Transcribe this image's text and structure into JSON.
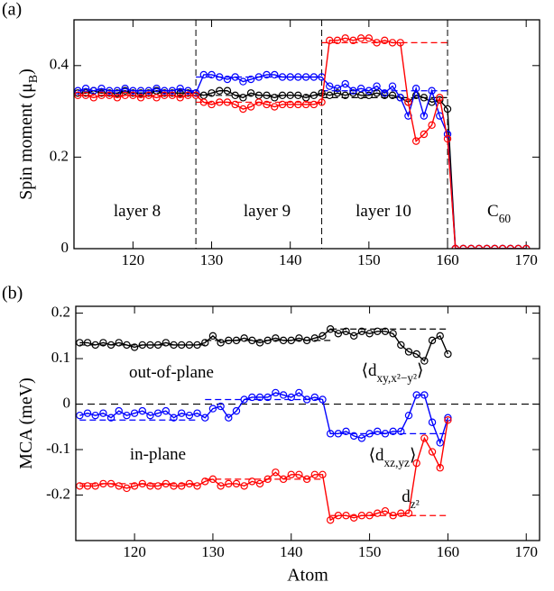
{
  "chart_data": [
    {
      "type": "line",
      "panel_label": "(a)",
      "y_label": [
        "Spin moment (μ",
        "B",
        ")"
      ],
      "xlim": [
        112.5,
        171.7
      ],
      "ylim": [
        0,
        0.5
      ],
      "xticks": [
        120,
        130,
        140,
        150,
        160,
        170
      ],
      "yticks": [
        0,
        0.2,
        0.4
      ],
      "dividers": [
        128,
        144,
        160
      ],
      "annotations": [
        [
          "layer 8"
        ],
        [
          "layer 9"
        ],
        [
          "layer 10"
        ],
        [
          "C",
          "60"
        ]
      ],
      "x": [
        113,
        114,
        115,
        116,
        117,
        118,
        119,
        120,
        121,
        122,
        123,
        124,
        125,
        126,
        127,
        128,
        129,
        130,
        131,
        132,
        133,
        134,
        135,
        136,
        137,
        138,
        139,
        140,
        141,
        142,
        143,
        144,
        145,
        146,
        147,
        148,
        149,
        150,
        151,
        152,
        153,
        154,
        155,
        156,
        157,
        158,
        159,
        160,
        161,
        162,
        163,
        164,
        165,
        166,
        167,
        168,
        169,
        170
      ],
      "series": [
        {
          "color": "#000000",
          "values": [
            0.34,
            0.34,
            0.345,
            0.34,
            0.34,
            0.34,
            0.345,
            0.34,
            0.34,
            0.34,
            0.345,
            0.34,
            0.34,
            0.34,
            0.34,
            0.34,
            0.335,
            0.34,
            0.345,
            0.345,
            0.335,
            0.33,
            0.34,
            0.335,
            0.335,
            0.33,
            0.335,
            0.335,
            0.335,
            0.33,
            0.335,
            0.34,
            0.335,
            0.34,
            0.335,
            0.34,
            0.335,
            0.335,
            0.34,
            0.335,
            0.335,
            0.33,
            0.32,
            0.335,
            0.33,
            0.32,
            0.325,
            0.305,
            0,
            0,
            0,
            0,
            0,
            0,
            0,
            0,
            0,
            0
          ]
        },
        {
          "color": "#0000ff",
          "values": [
            0.345,
            0.35,
            0.345,
            0.35,
            0.345,
            0.345,
            0.35,
            0.345,
            0.345,
            0.345,
            0.35,
            0.345,
            0.345,
            0.35,
            0.345,
            0.34,
            0.38,
            0.38,
            0.375,
            0.37,
            0.375,
            0.365,
            0.37,
            0.375,
            0.38,
            0.38,
            0.375,
            0.375,
            0.375,
            0.375,
            0.375,
            0.375,
            0.355,
            0.35,
            0.36,
            0.345,
            0.35,
            0.345,
            0.355,
            0.34,
            0.355,
            0.33,
            0.29,
            0.35,
            0.29,
            0.345,
            0.29,
            0.25,
            0,
            0,
            0,
            0,
            0,
            0,
            0,
            0,
            0,
            0
          ]
        },
        {
          "color": "#ff0000",
          "values": [
            0.335,
            0.335,
            0.33,
            0.335,
            0.335,
            0.33,
            0.335,
            0.335,
            0.33,
            0.335,
            0.33,
            0.335,
            0.335,
            0.33,
            0.335,
            0.335,
            0.32,
            0.315,
            0.32,
            0.32,
            0.315,
            0.305,
            0.31,
            0.32,
            0.315,
            0.31,
            0.315,
            0.315,
            0.315,
            0.315,
            0.315,
            0.32,
            0.455,
            0.455,
            0.46,
            0.455,
            0.46,
            0.46,
            0.45,
            0.455,
            0.45,
            0.45,
            0.32,
            0.235,
            0.25,
            0.27,
            0.33,
            0.24,
            0,
            0,
            0,
            0,
            0,
            0,
            0,
            0,
            0,
            0
          ]
        }
      ],
      "mean_segments": [
        {
          "color": "#000000",
          "xrange": [
            113,
            128
          ],
          "value": 0.34
        },
        {
          "color": "#000000",
          "xrange": [
            128,
            144
          ],
          "value": 0.335
        },
        {
          "color": "#000000",
          "xrange": [
            144,
            160
          ],
          "value": 0.33
        },
        {
          "color": "#0000ff",
          "xrange": [
            113,
            128
          ],
          "value": 0.345
        },
        {
          "color": "#0000ff",
          "xrange": [
            128,
            144
          ],
          "value": 0.375
        },
        {
          "color": "#0000ff",
          "xrange": [
            144,
            160
          ],
          "value": 0.345
        },
        {
          "color": "#ff0000",
          "xrange": [
            113,
            128
          ],
          "value": 0.335
        },
        {
          "color": "#ff0000",
          "xrange": [
            128,
            144
          ],
          "value": 0.32
        },
        {
          "color": "#ff0000",
          "xrange": [
            144,
            160
          ],
          "value": 0.45
        }
      ]
    },
    {
      "type": "line",
      "panel_label": "(b)",
      "y_label": [
        "MCA (meV)"
      ],
      "x_label": "Atom",
      "xlim": [
        112.5,
        171.7
      ],
      "ylim": [
        -0.3,
        0.215
      ],
      "xticks": [
        120,
        130,
        140,
        150,
        160,
        170
      ],
      "yticks": [
        -0.2,
        -0.1,
        0,
        0.1,
        0.2
      ],
      "hline": 0,
      "annotations": [
        [
          "out-of-plane"
        ],
        [
          "in-plane"
        ],
        [
          "⟨d",
          "xy,x²−y²",
          "⟩"
        ],
        [
          "⟨d",
          "xz,yz",
          "⟩"
        ],
        [
          "d",
          "z²"
        ]
      ],
      "x": [
        113,
        114,
        115,
        116,
        117,
        118,
        119,
        120,
        121,
        122,
        123,
        124,
        125,
        126,
        127,
        128,
        129,
        130,
        131,
        132,
        133,
        134,
        135,
        136,
        137,
        138,
        139,
        140,
        141,
        142,
        143,
        144,
        145,
        146,
        147,
        148,
        149,
        150,
        151,
        152,
        153,
        154,
        155,
        156,
        157,
        158,
        159,
        160
      ],
      "series": [
        {
          "color": "#000000",
          "values": [
            0.135,
            0.135,
            0.13,
            0.135,
            0.13,
            0.135,
            0.13,
            0.125,
            0.13,
            0.13,
            0.13,
            0.135,
            0.13,
            0.13,
            0.13,
            0.13,
            0.135,
            0.15,
            0.135,
            0.14,
            0.14,
            0.145,
            0.14,
            0.135,
            0.14,
            0.145,
            0.14,
            0.14,
            0.145,
            0.14,
            0.145,
            0.15,
            0.165,
            0.155,
            0.16,
            0.15,
            0.16,
            0.155,
            0.16,
            0.16,
            0.155,
            0.13,
            0.115,
            0.11,
            0.095,
            0.14,
            0.15,
            0.11
          ]
        },
        {
          "color": "#0000ff",
          "values": [
            -0.025,
            -0.02,
            -0.025,
            -0.02,
            -0.03,
            -0.015,
            -0.025,
            -0.02,
            -0.015,
            -0.025,
            -0.02,
            -0.015,
            -0.03,
            -0.02,
            -0.025,
            -0.02,
            -0.03,
            -0.01,
            -0.005,
            -0.03,
            -0.015,
            0.01,
            0.015,
            0.015,
            0.015,
            0.025,
            0.02,
            0.015,
            0.025,
            0.01,
            0.015,
            0.01,
            -0.065,
            -0.065,
            -0.06,
            -0.07,
            -0.075,
            -0.065,
            -0.06,
            -0.065,
            -0.06,
            -0.06,
            -0.025,
            0.02,
            0.02,
            -0.04,
            -0.085,
            -0.03
          ]
        },
        {
          "color": "#ff0000",
          "values": [
            -0.18,
            -0.18,
            -0.18,
            -0.175,
            -0.175,
            -0.18,
            -0.185,
            -0.18,
            -0.175,
            -0.18,
            -0.18,
            -0.175,
            -0.18,
            -0.18,
            -0.175,
            -0.18,
            -0.17,
            -0.165,
            -0.18,
            -0.175,
            -0.175,
            -0.18,
            -0.17,
            -0.175,
            -0.165,
            -0.15,
            -0.165,
            -0.155,
            -0.155,
            -0.165,
            -0.155,
            -0.155,
            -0.255,
            -0.245,
            -0.245,
            -0.25,
            -0.245,
            -0.245,
            -0.24,
            -0.235,
            -0.245,
            -0.24,
            -0.24,
            -0.13,
            -0.075,
            -0.105,
            -0.14,
            -0.035
          ]
        }
      ],
      "mean_segments": [
        {
          "color": "#000000",
          "xrange": [
            113,
            129
          ],
          "value": 0.13
        },
        {
          "color": "#000000",
          "xrange": [
            129,
            145
          ],
          "value": 0.14
        },
        {
          "color": "#000000",
          "xrange": [
            145,
            160
          ],
          "value": 0.165
        },
        {
          "color": "#0000ff",
          "xrange": [
            113,
            128
          ],
          "value": -0.035
        },
        {
          "color": "#0000ff",
          "xrange": [
            129,
            144
          ],
          "value": 0.01
        },
        {
          "color": "#0000ff",
          "xrange": [
            145,
            160
          ],
          "value": -0.065
        },
        {
          "color": "#ff0000",
          "xrange": [
            113,
            128
          ],
          "value": -0.175
        },
        {
          "color": "#ff0000",
          "xrange": [
            129,
            144
          ],
          "value": -0.165
        },
        {
          "color": "#ff0000",
          "xrange": [
            145,
            160
          ],
          "value": -0.245
        }
      ]
    }
  ]
}
